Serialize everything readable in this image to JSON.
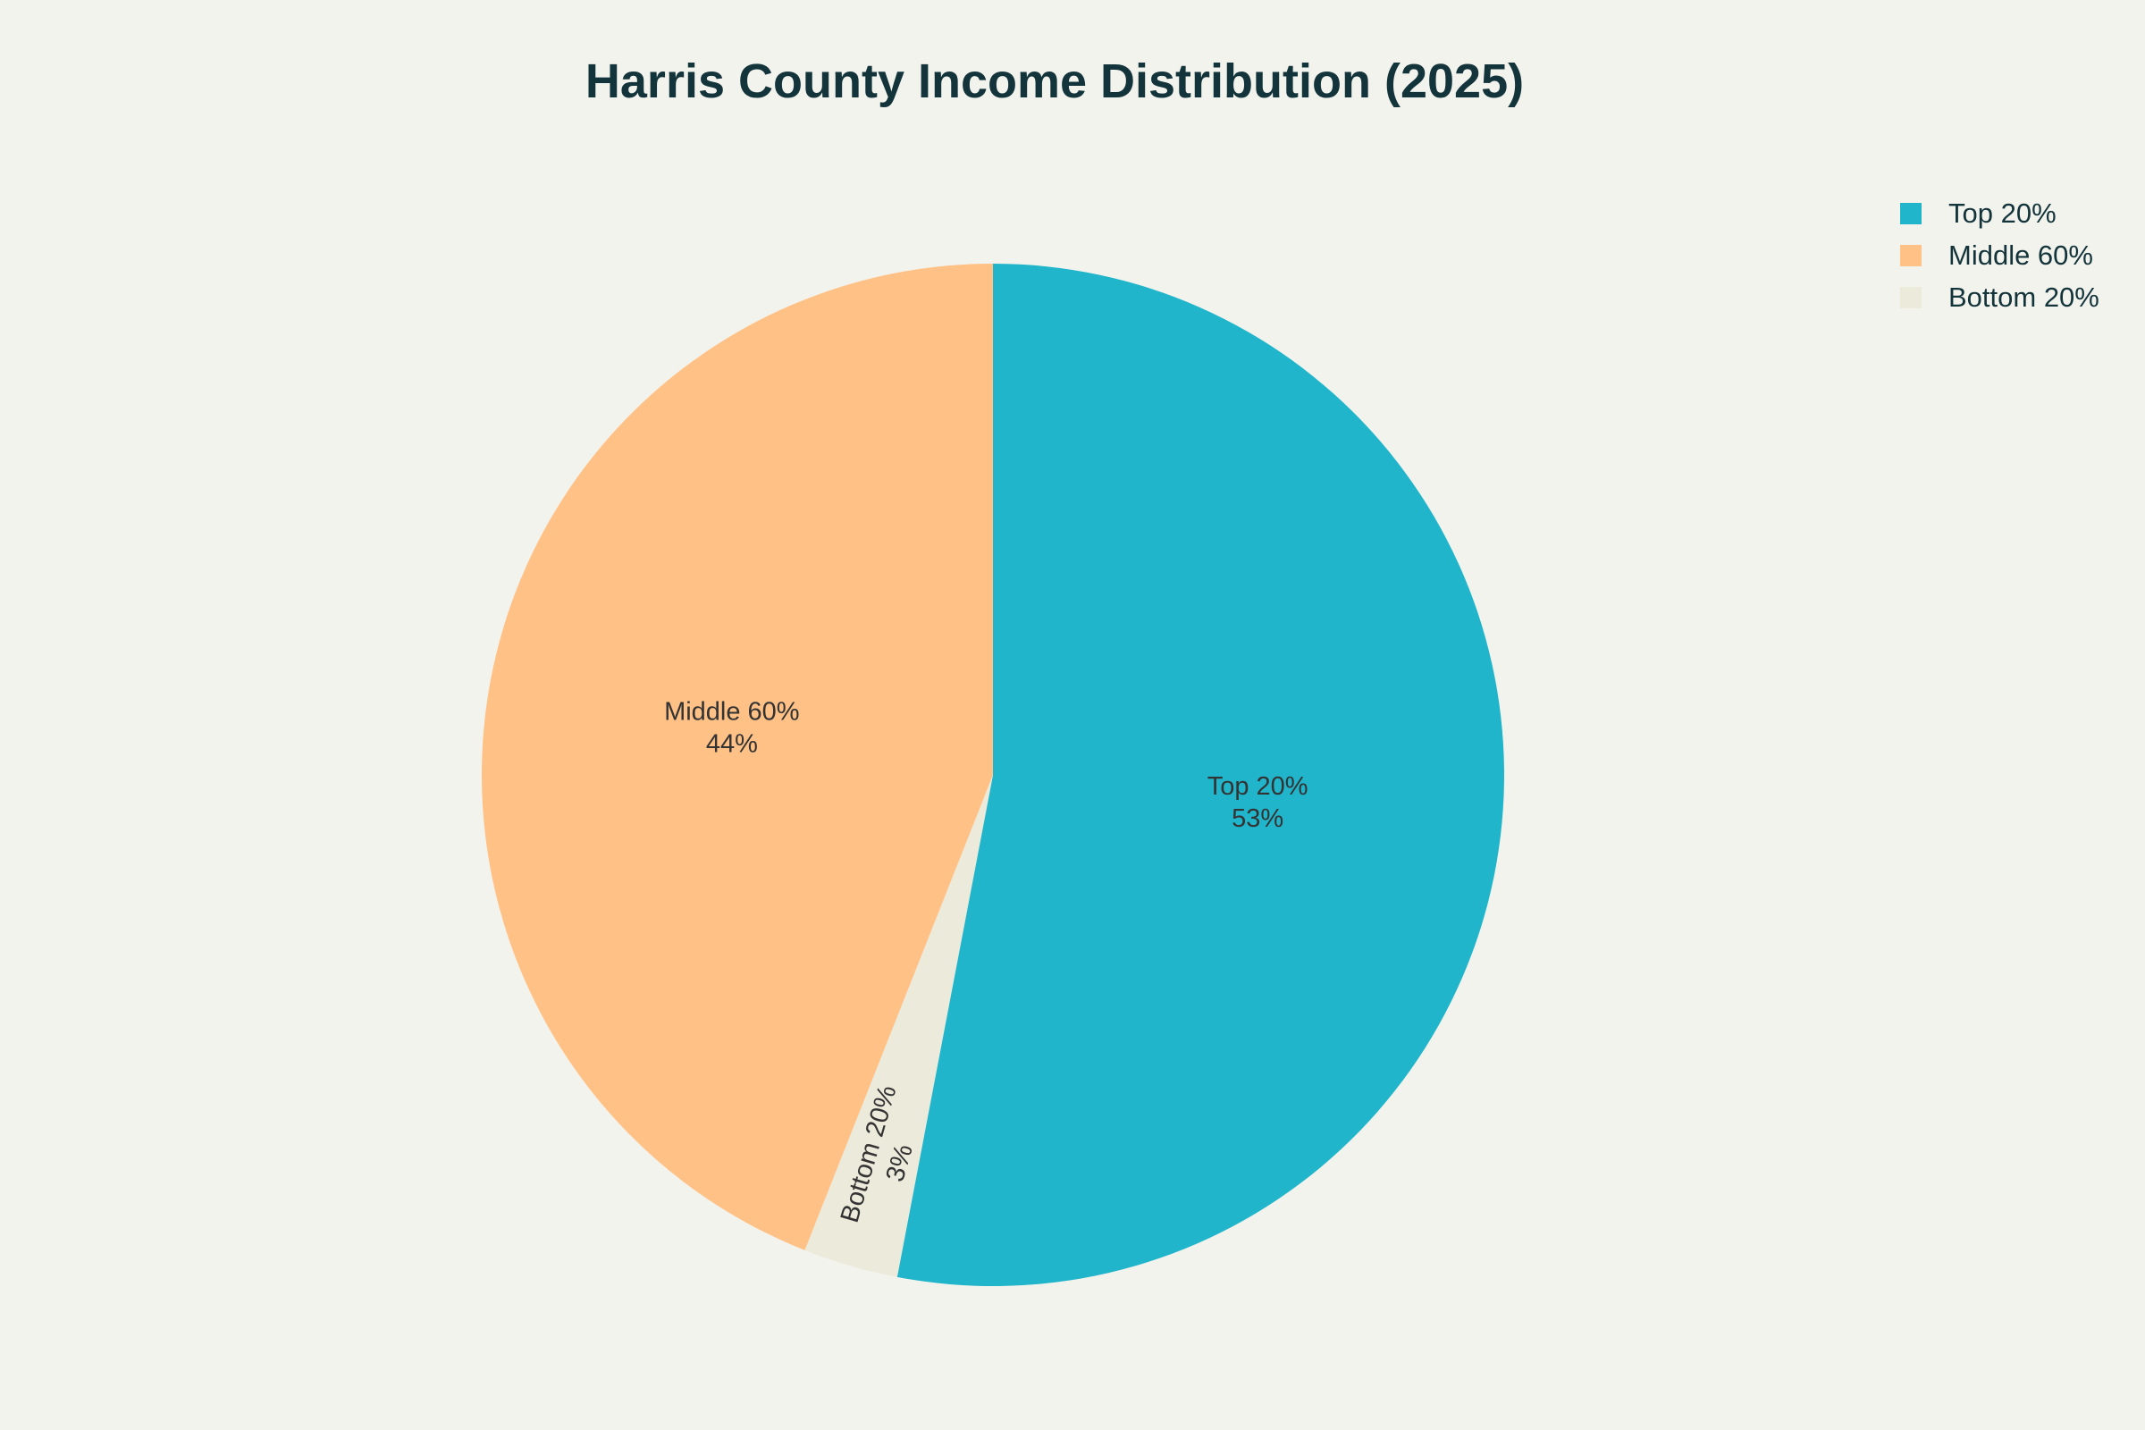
{
  "chart_data": {
    "type": "pie",
    "title": "Harris County Income Distribution (2025)",
    "slices": [
      {
        "label": "Top 20%",
        "value": 53,
        "display": "53%",
        "color": "#21b5cb"
      },
      {
        "label": "Bottom 20%",
        "value": 3,
        "display": "3%",
        "color": "#eceadb"
      },
      {
        "label": "Middle 60%",
        "value": 44,
        "display": "44%",
        "color": "#ffc185"
      }
    ],
    "legend": {
      "placement": "top-right",
      "items": [
        {
          "label": "Top 20%",
          "color": "#21b5cb"
        },
        {
          "label": "Middle 60%",
          "color": "#ffc185"
        },
        {
          "label": "Bottom 20%",
          "color": "#eceadb"
        }
      ]
    },
    "direction": "clockwise",
    "start": "top"
  }
}
